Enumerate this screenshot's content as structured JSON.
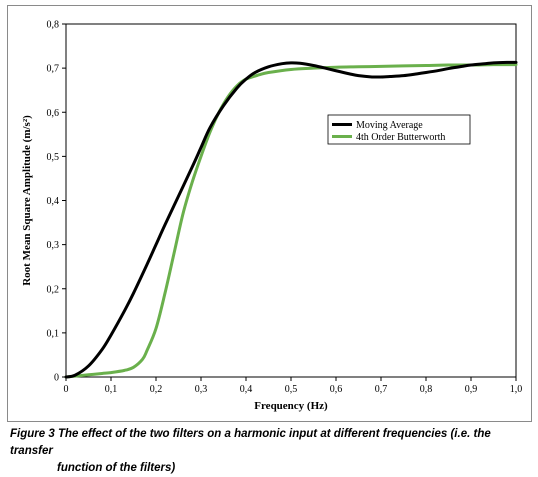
{
  "figure": {
    "caption_label": "Figure 3",
    "caption_text_line1": "The effect of the two filters on a harmonic input at different frequencies (i.e. the transfer",
    "caption_text_line2": "function of the filters)"
  },
  "chart_data": {
    "type": "line",
    "title": "",
    "xlabel": "Frequency (Hz)",
    "ylabel": "Root Mean Square Amplitude (m/s²)",
    "xlim": [
      0,
      1.0
    ],
    "ylim": [
      0,
      0.8
    ],
    "x_ticks": [
      0,
      0.1,
      0.2,
      0.3,
      0.4,
      0.5,
      0.6,
      0.7,
      0.8,
      0.9,
      1.0
    ],
    "x_tick_labels": [
      "0",
      "0,1",
      "0,2",
      "0,3",
      "0,4",
      "0,5",
      "0,6",
      "0,7",
      "0,8",
      "0,9",
      "1,0"
    ],
    "y_ticks": [
      0,
      0.1,
      0.2,
      0.3,
      0.4,
      0.5,
      0.6,
      0.7,
      0.8
    ],
    "y_tick_labels": [
      "0",
      "0,1",
      "0,2",
      "0,3",
      "0,4",
      "0,5",
      "0,6",
      "0,7",
      "0,8"
    ],
    "grid": false,
    "legend_position": "center-right",
    "series": [
      {
        "name": "Moving Average",
        "color": "#000000",
        "x": [
          0,
          0.02,
          0.05,
          0.08,
          0.1,
          0.13,
          0.15,
          0.18,
          0.2,
          0.22,
          0.25,
          0.28,
          0.3,
          0.32,
          0.35,
          0.38,
          0.4,
          0.42,
          0.45,
          0.48,
          0.5,
          0.52,
          0.55,
          0.58,
          0.6,
          0.63,
          0.65,
          0.68,
          0.7,
          0.72,
          0.75,
          0.78,
          0.8,
          0.83,
          0.85,
          0.88,
          0.9,
          0.93,
          0.95,
          0.98,
          1.0
        ],
        "y": [
          0,
          0.004,
          0.025,
          0.062,
          0.095,
          0.15,
          0.19,
          0.255,
          0.3,
          0.345,
          0.41,
          0.475,
          0.52,
          0.565,
          0.615,
          0.655,
          0.675,
          0.69,
          0.703,
          0.71,
          0.712,
          0.711,
          0.706,
          0.699,
          0.694,
          0.687,
          0.683,
          0.68,
          0.68,
          0.681,
          0.683,
          0.687,
          0.69,
          0.695,
          0.699,
          0.704,
          0.707,
          0.71,
          0.712,
          0.713,
          0.713
        ]
      },
      {
        "name": "4th Order Butterworth",
        "color": "#6ab04c",
        "x": [
          0,
          0.02,
          0.05,
          0.08,
          0.1,
          0.13,
          0.15,
          0.17,
          0.18,
          0.2,
          0.22,
          0.24,
          0.26,
          0.28,
          0.3,
          0.32,
          0.34,
          0.36,
          0.38,
          0.4,
          0.43,
          0.45,
          0.5,
          0.55,
          0.6,
          0.65,
          0.7,
          0.75,
          0.8,
          0.85,
          0.9,
          0.95,
          1.0
        ],
        "y": [
          0,
          0.002,
          0.005,
          0.008,
          0.01,
          0.015,
          0.022,
          0.04,
          0.06,
          0.11,
          0.19,
          0.28,
          0.37,
          0.44,
          0.5,
          0.555,
          0.6,
          0.635,
          0.66,
          0.675,
          0.685,
          0.69,
          0.697,
          0.7,
          0.702,
          0.703,
          0.704,
          0.705,
          0.706,
          0.707,
          0.707,
          0.708,
          0.708
        ]
      }
    ]
  }
}
